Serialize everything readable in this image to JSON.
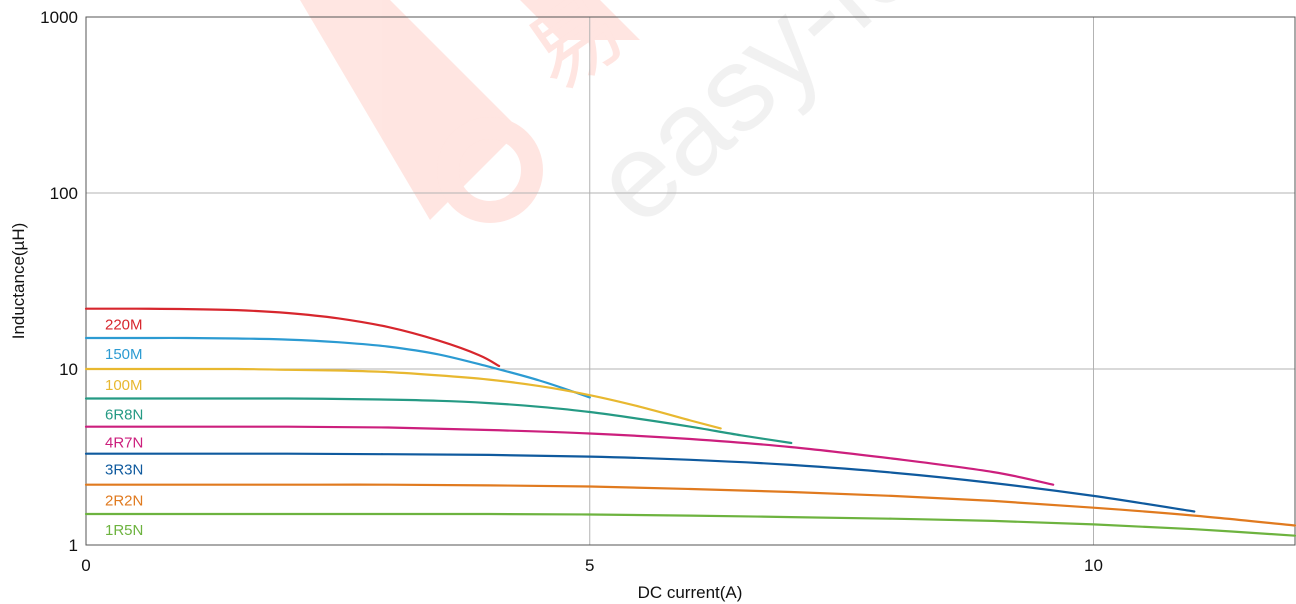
{
  "watermark": {
    "text": "easy-ic.",
    "chinese": "易",
    "color": "#ff6a4d"
  },
  "chart_data": {
    "type": "line",
    "xlabel": "DC current(A)",
    "ylabel": "Inductance(µH)",
    "xlim": [
      0,
      12
    ],
    "ylim": [
      1,
      1000
    ],
    "yscale": "log",
    "grid": true,
    "legend": "inline labels on left",
    "x_ticks": [
      "0",
      "5",
      "10"
    ],
    "y_ticks": [
      "1",
      "10",
      "100",
      "1000"
    ],
    "series": [
      {
        "name": "220M",
        "color": "#d7262d",
        "x": [
          0,
          0.5,
          1.0,
          1.5,
          2.0,
          2.5,
          3.0,
          3.5,
          3.9,
          4.1
        ],
        "y": [
          22,
          22,
          21.9,
          21.6,
          20.8,
          19.4,
          17.3,
          14.5,
          12.0,
          10.4
        ]
      },
      {
        "name": "150M",
        "color": "#2c9bd2",
        "x": [
          0,
          0.5,
          1.0,
          1.5,
          2.0,
          2.5,
          3.0,
          3.5,
          4.0,
          4.5,
          5.0
        ],
        "y": [
          15,
          15,
          15,
          14.9,
          14.7,
          14.2,
          13.4,
          12.1,
          10.3,
          8.6,
          6.9
        ]
      },
      {
        "name": "100M",
        "color": "#e8b830",
        "x": [
          0,
          0.5,
          1.0,
          1.5,
          2.0,
          2.5,
          3.0,
          3.5,
          4.0,
          4.5,
          5.0,
          5.5,
          6.0,
          6.3
        ],
        "y": [
          10,
          10,
          10,
          10,
          9.9,
          9.8,
          9.6,
          9.2,
          8.7,
          8.0,
          7.1,
          6.1,
          5.1,
          4.6
        ]
      },
      {
        "name": "6R8N",
        "color": "#259a84",
        "x": [
          0,
          1.0,
          2.0,
          3.0,
          3.5,
          4.0,
          4.5,
          5.0,
          5.5,
          6.0,
          6.5,
          7.0
        ],
        "y": [
          6.8,
          6.8,
          6.8,
          6.7,
          6.6,
          6.4,
          6.1,
          5.7,
          5.2,
          4.7,
          4.2,
          3.8
        ]
      },
      {
        "name": "4R7N",
        "color": "#cc1f7d",
        "x": [
          0,
          1.0,
          2.0,
          3.0,
          4.0,
          5.0,
          6.0,
          7.0,
          8.0,
          9.0,
          9.6
        ],
        "y": [
          4.7,
          4.7,
          4.7,
          4.65,
          4.5,
          4.3,
          4.0,
          3.6,
          3.1,
          2.6,
          2.2
        ]
      },
      {
        "name": "3R3N",
        "color": "#0f5a9e",
        "x": [
          0,
          1.0,
          2.0,
          3.0,
          4.0,
          5.0,
          6.0,
          7.0,
          8.0,
          9.0,
          10.0,
          11.0
        ],
        "y": [
          3.3,
          3.3,
          3.3,
          3.28,
          3.25,
          3.18,
          3.05,
          2.85,
          2.58,
          2.25,
          1.9,
          1.55
        ]
      },
      {
        "name": "2R2N",
        "color": "#e07a1f",
        "x": [
          0,
          1.0,
          2.0,
          3.0,
          4.0,
          5.0,
          6.0,
          7.0,
          8.0,
          9.0,
          10.0,
          11.0,
          12.0
        ],
        "y": [
          2.2,
          2.2,
          2.2,
          2.2,
          2.18,
          2.15,
          2.08,
          2.0,
          1.9,
          1.78,
          1.63,
          1.47,
          1.29
        ]
      },
      {
        "name": "1R5N",
        "color": "#6db33f",
        "x": [
          0,
          1.0,
          2.0,
          3.0,
          4.0,
          5.0,
          6.0,
          7.0,
          8.0,
          9.0,
          10.0,
          11.0,
          12.0
        ],
        "y": [
          1.5,
          1.5,
          1.5,
          1.5,
          1.5,
          1.49,
          1.47,
          1.44,
          1.41,
          1.37,
          1.31,
          1.23,
          1.13
        ]
      }
    ]
  }
}
